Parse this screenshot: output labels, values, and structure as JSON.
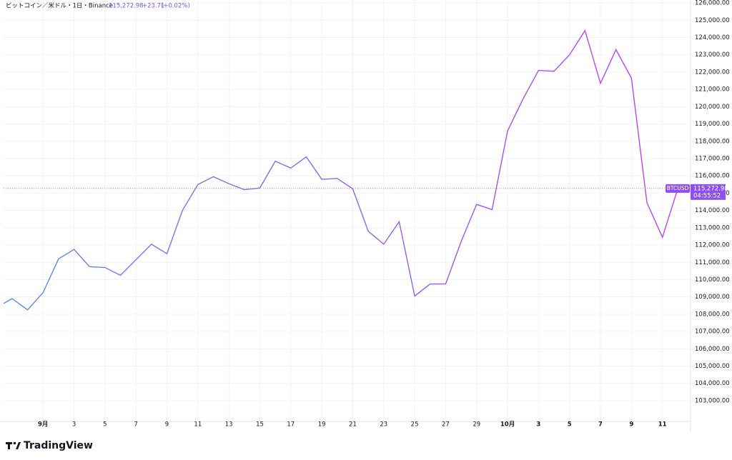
{
  "chart_data": {
    "type": "line",
    "title": "ビットコイン／米ドル・1日・Binance",
    "last_price": "115,272.98",
    "change": "+23.71",
    "change_pct": "(+0.02%)",
    "countdown": "04:55:52",
    "x": [
      -2,
      -1,
      0,
      1,
      2,
      3,
      4,
      5,
      6,
      7,
      8,
      9,
      10,
      11,
      12,
      13,
      14,
      15,
      16,
      17,
      18,
      19,
      20,
      21,
      22,
      23,
      24,
      25,
      26,
      27,
      28,
      29,
      30,
      31,
      32,
      33,
      34,
      35,
      36,
      37,
      38,
      39,
      40,
      41,
      42
    ],
    "series": [
      {
        "name": "BTCUSD",
        "gradient": [
          "#5b8ce8",
          "#c23ff0"
        ],
        "values": [
          108400,
          108900,
          108250,
          109250,
          111200,
          111750,
          110750,
          110700,
          110250,
          111150,
          112050,
          111500,
          114000,
          115500,
          115950,
          115550,
          115200,
          115300,
          116850,
          116450,
          117100,
          115800,
          115850,
          115250,
          112800,
          112050,
          113350,
          109050,
          109750,
          109750,
          112200,
          114350,
          114050,
          118600,
          120450,
          122100,
          122050,
          123000,
          124400,
          121350,
          123300,
          121650,
          114450,
          112450,
          115272.98
        ]
      }
    ],
    "xlim": [
      -1.55,
      42.77
    ],
    "xticks": [
      {
        "value": 1,
        "label": "9月"
      },
      3,
      5,
      7,
      9,
      11,
      13,
      15,
      17,
      19,
      21,
      23,
      25,
      27,
      29,
      {
        "value": 31,
        "label": "10月"
      },
      {
        "value": 33,
        "label": "3"
      },
      {
        "value": 35,
        "label": "5"
      },
      {
        "value": 37,
        "label": "7"
      },
      {
        "value": 39,
        "label": "9"
      },
      {
        "value": 41,
        "label": "11"
      }
    ],
    "ylim": [
      101800,
      126170
    ],
    "yticks": [
      {
        "value": 103000,
        "label": "103,000.00"
      },
      {
        "value": 104000,
        "label": "104,000.00"
      },
      {
        "value": 105000,
        "label": "105,000.00"
      },
      {
        "value": 106000,
        "label": "106,000.00"
      },
      {
        "value": 107000,
        "label": "107,000.00"
      },
      {
        "value": 108000,
        "label": "108,000.00"
      },
      {
        "value": 109000,
        "label": "109,000.00"
      },
      {
        "value": 110000,
        "label": "110,000.00"
      },
      {
        "value": 111000,
        "label": "111,000.00"
      },
      {
        "value": 112000,
        "label": "112,000.00"
      },
      {
        "value": 113000,
        "label": "113,000.00"
      },
      {
        "value": 114000,
        "label": "114,000.00"
      },
      {
        "value": 115000,
        "label": "115,000.00"
      },
      {
        "value": 116000,
        "label": "116,000.00"
      },
      {
        "value": 117000,
        "label": "117,000.00"
      },
      {
        "value": 118000,
        "label": "118,000.00"
      },
      {
        "value": 119000,
        "label": "119,000.00"
      },
      {
        "value": 120000,
        "label": "120,000.00"
      },
      {
        "value": 121000,
        "label": "121,000.00"
      },
      {
        "value": 122000,
        "label": "122,000.00"
      },
      {
        "value": 123000,
        "label": "123,000.00"
      },
      {
        "value": 124000,
        "label": "124,000.00"
      },
      {
        "value": 125000,
        "label": "125,000.00"
      },
      {
        "value": 126000,
        "label": "126,000.00"
      }
    ],
    "grid": true
  },
  "brand": "TradingView"
}
